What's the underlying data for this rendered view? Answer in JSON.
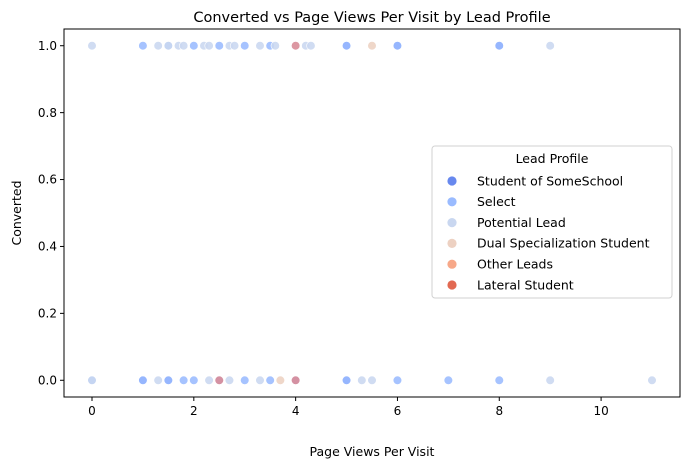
{
  "chart_data": {
    "type": "scatter",
    "title": "Converted vs Page Views Per Visit by Lead Profile",
    "xlabel": "Page Views Per Visit",
    "ylabel": "Converted",
    "xlim": [
      -0.55,
      11.55
    ],
    "ylim": [
      -0.05,
      1.05
    ],
    "xticks": [
      0,
      2,
      4,
      6,
      8,
      10
    ],
    "xtick_labels": [
      "0",
      "2",
      "4",
      "6",
      "8",
      "10"
    ],
    "yticks": [
      0.0,
      0.2,
      0.4,
      0.6,
      0.8,
      1.0
    ],
    "ytick_labels": [
      "0.0",
      "0.2",
      "0.4",
      "0.6",
      "0.8",
      "1.0"
    ],
    "grid": false,
    "legend": {
      "title": "Lead Profile",
      "placement": "center-right"
    },
    "series": [
      {
        "name": "Student of SomeSchool",
        "color": "#6788ee",
        "points": [
          [
            1,
            0
          ],
          [
            1.5,
            0
          ],
          [
            2.5,
            0
          ],
          [
            4,
            0
          ],
          [
            5,
            0
          ],
          [
            5,
            1
          ],
          [
            6,
            1
          ],
          [
            8,
            1
          ]
        ]
      },
      {
        "name": "Select",
        "color": "#9abbff",
        "points": [
          [
            0,
            0
          ],
          [
            1,
            0
          ],
          [
            1.5,
            0
          ],
          [
            1.8,
            0
          ],
          [
            2,
            0
          ],
          [
            2.5,
            0
          ],
          [
            3,
            0
          ],
          [
            3.5,
            0
          ],
          [
            4,
            0
          ],
          [
            5,
            0
          ],
          [
            6,
            0
          ],
          [
            7,
            0
          ],
          [
            8,
            0
          ],
          [
            1,
            1
          ],
          [
            1.5,
            1
          ],
          [
            2,
            1
          ],
          [
            2.5,
            1
          ],
          [
            3,
            1
          ],
          [
            3.5,
            1
          ],
          [
            5,
            1
          ],
          [
            6,
            1
          ],
          [
            8,
            1
          ]
        ]
      },
      {
        "name": "Potential Lead",
        "color": "#c9d7f0",
        "points": [
          [
            0,
            0
          ],
          [
            1.3,
            0
          ],
          [
            2.3,
            0
          ],
          [
            2.7,
            0
          ],
          [
            3.3,
            0
          ],
          [
            5.3,
            0
          ],
          [
            5.5,
            0
          ],
          [
            9,
            0
          ],
          [
            11,
            0
          ],
          [
            0,
            1
          ],
          [
            1.3,
            1
          ],
          [
            1.5,
            1
          ],
          [
            1.7,
            1
          ],
          [
            1.8,
            1
          ],
          [
            2.2,
            1
          ],
          [
            2.3,
            1
          ],
          [
            2.7,
            1
          ],
          [
            2.8,
            1
          ],
          [
            3.3,
            1
          ],
          [
            3.6,
            1
          ],
          [
            4.2,
            1
          ],
          [
            4.3,
            1
          ],
          [
            9,
            1
          ]
        ]
      },
      {
        "name": "Dual Specialization Student",
        "color": "#edd1c2",
        "points": [
          [
            3.7,
            0
          ],
          [
            5.5,
            1
          ]
        ]
      },
      {
        "name": "Other Leads",
        "color": "#f7a889",
        "points": []
      },
      {
        "name": "Lateral Student",
        "color": "#e26952",
        "points": []
      }
    ],
    "overlap_points": [
      {
        "color": "#d98e9a",
        "points": [
          [
            2.5,
            0
          ],
          [
            4,
            0
          ],
          [
            4,
            1
          ]
        ]
      }
    ]
  }
}
